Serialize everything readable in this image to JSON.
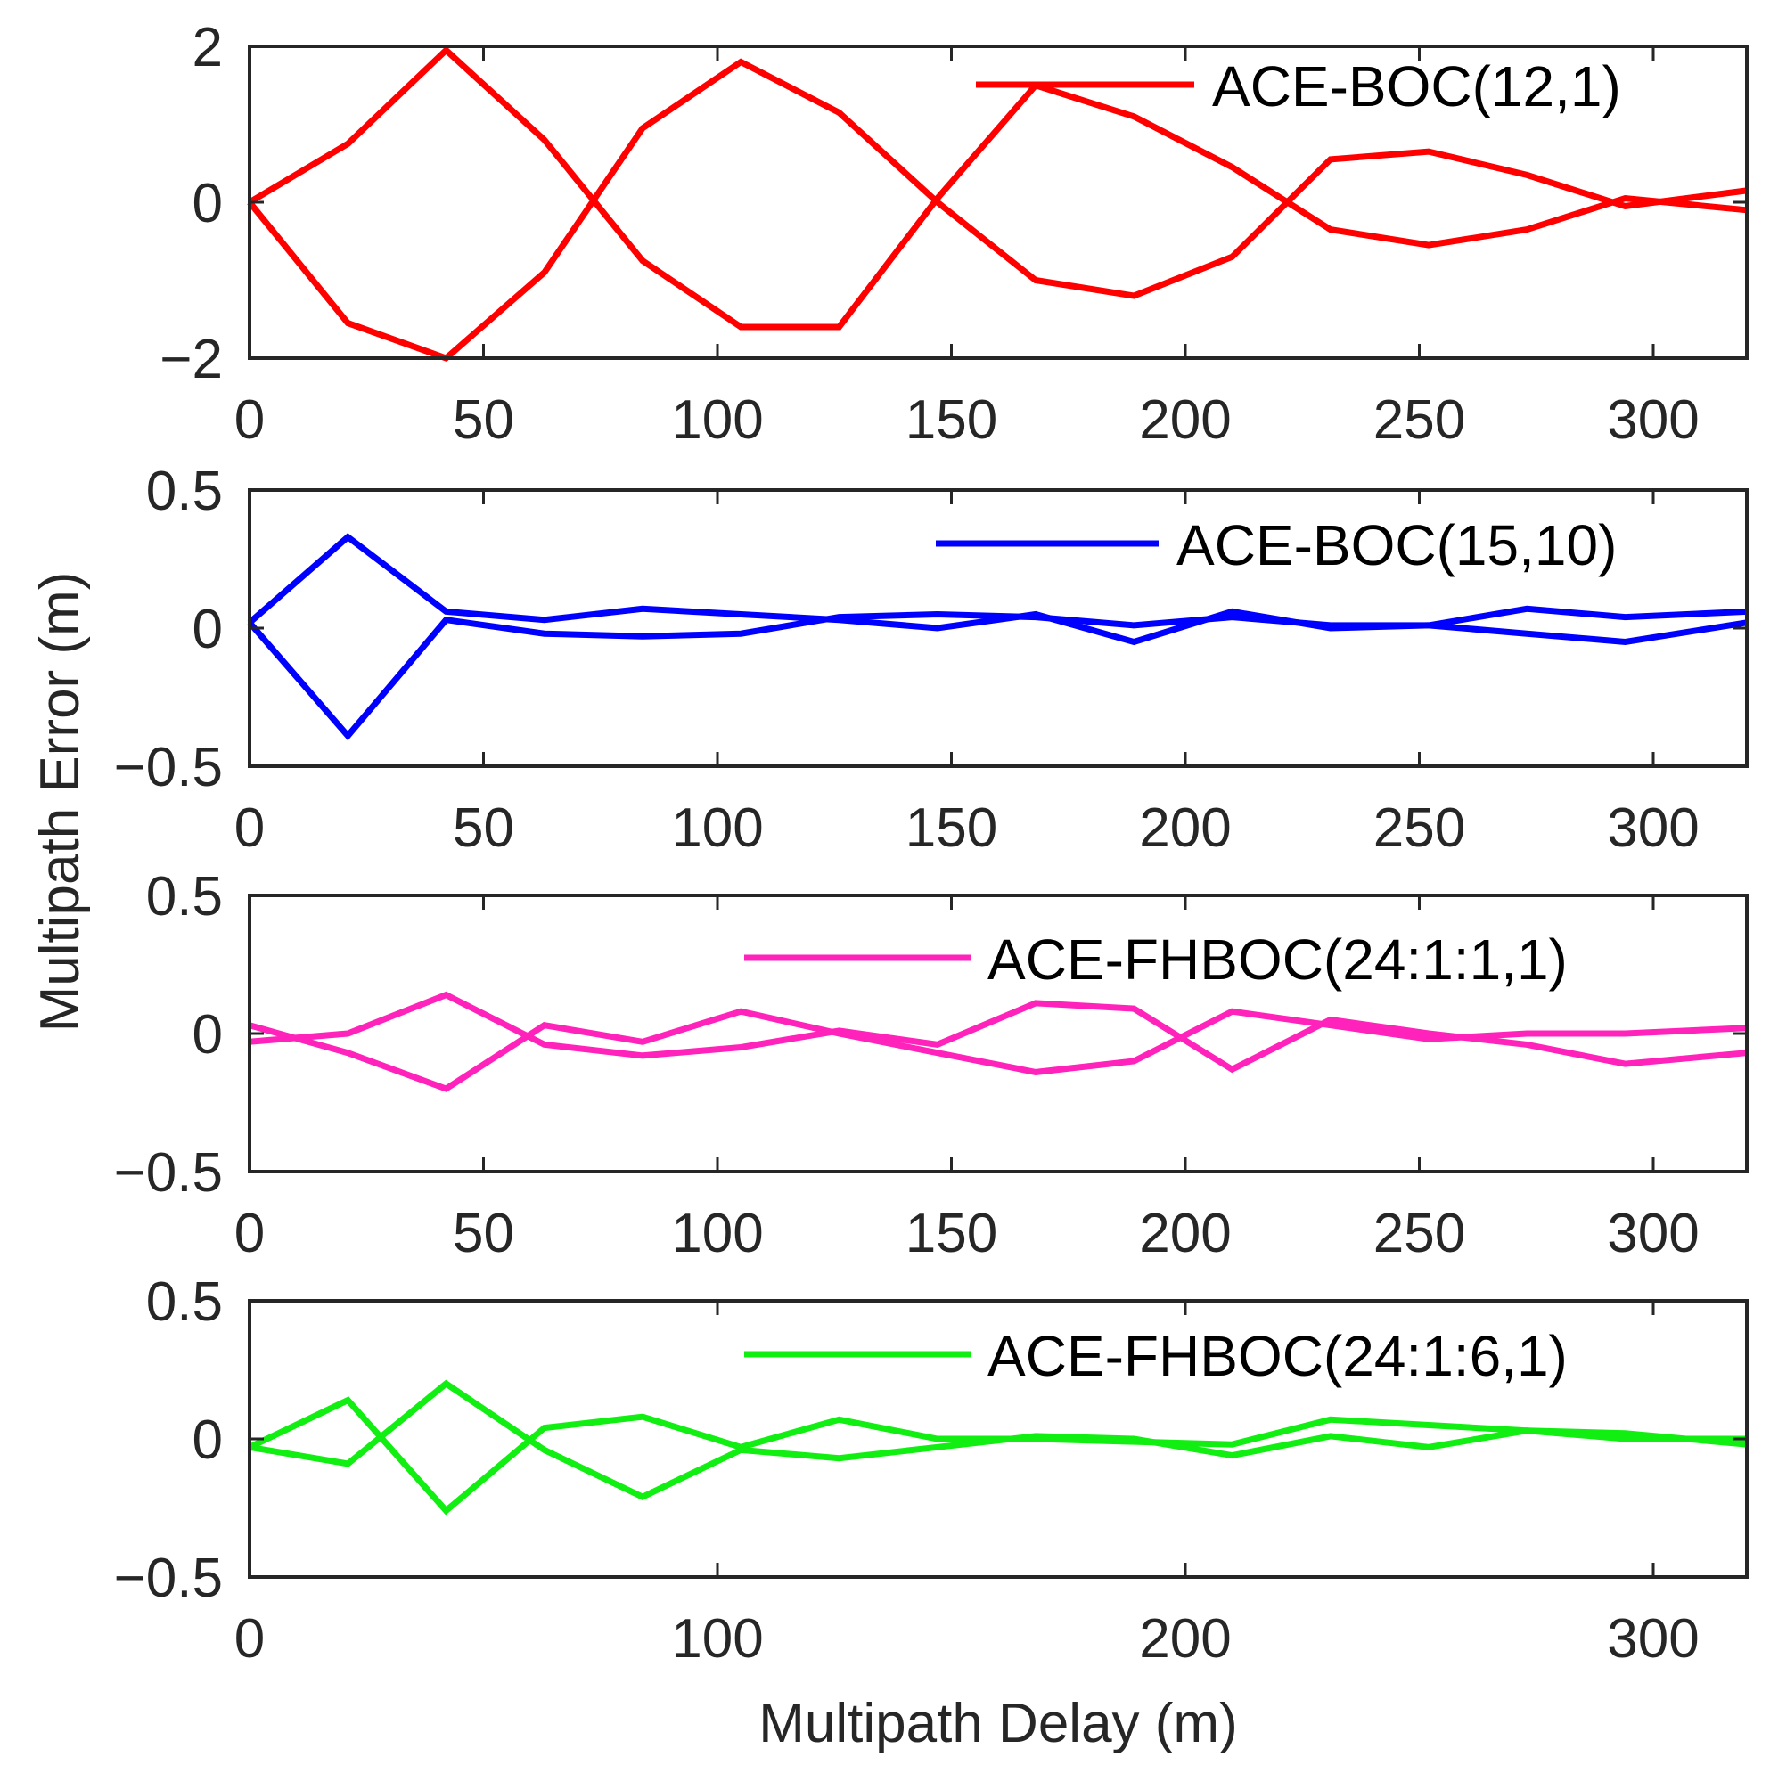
{
  "figure": {
    "ylabel": "Multipath Error (m)",
    "xlabel": "Multipath Delay (m)"
  },
  "chart_data": [
    {
      "type": "line",
      "legend": "ACE-BOC(12,1)",
      "color": "#ff0000",
      "xlim": [
        0,
        320
      ],
      "ylim": [
        -2,
        2
      ],
      "xticks": [
        0,
        50,
        100,
        150,
        200,
        250,
        300
      ],
      "xtick_labels": [
        "0",
        "50",
        "100",
        "150",
        "200",
        "250",
        "300"
      ],
      "yticks": [
        -2,
        0,
        2
      ],
      "ytick_labels": [
        "−2",
        "0",
        "2"
      ],
      "series": [
        {
          "name": "upper",
          "x": [
            0,
            21,
            42,
            63,
            84,
            105,
            126,
            147,
            168,
            189,
            210,
            231,
            252,
            273,
            294,
            320
          ],
          "y": [
            0,
            0.75,
            1.95,
            0.8,
            -0.75,
            -1.6,
            -1.6,
            0.05,
            1.5,
            1.1,
            0.45,
            -0.35,
            -0.55,
            -0.35,
            0.05,
            -0.1
          ]
        },
        {
          "name": "lower",
          "x": [
            0,
            21,
            42,
            63,
            84,
            105,
            126,
            147,
            168,
            189,
            210,
            231,
            252,
            273,
            294,
            320
          ],
          "y": [
            0,
            -1.55,
            -2.0,
            -0.9,
            0.95,
            1.8,
            1.15,
            0.0,
            -1.0,
            -1.2,
            -0.7,
            0.55,
            0.65,
            0.35,
            -0.05,
            0.15
          ]
        }
      ]
    },
    {
      "type": "line",
      "legend": "ACE-BOC(15,10)",
      "color": "#0000ff",
      "xlim": [
        0,
        320
      ],
      "ylim": [
        -0.5,
        0.5
      ],
      "xticks": [
        0,
        50,
        100,
        150,
        200,
        250,
        300
      ],
      "xtick_labels": [
        "0",
        "50",
        "100",
        "150",
        "200",
        "250",
        "300"
      ],
      "yticks": [
        -0.5,
        0,
        0.5
      ],
      "ytick_labels": [
        "−0.5",
        "0",
        "0.5"
      ],
      "series": [
        {
          "name": "upper",
          "x": [
            0,
            21,
            42,
            63,
            84,
            105,
            126,
            147,
            168,
            189,
            210,
            231,
            252,
            273,
            294,
            320
          ],
          "y": [
            0.02,
            0.33,
            0.06,
            0.03,
            0.07,
            0.05,
            0.03,
            0.0,
            0.05,
            -0.05,
            0.06,
            0.0,
            0.01,
            0.07,
            0.04,
            0.06
          ]
        },
        {
          "name": "lower",
          "x": [
            0,
            21,
            42,
            63,
            84,
            105,
            126,
            147,
            168,
            189,
            210,
            231,
            252,
            273,
            294,
            320
          ],
          "y": [
            0.02,
            -0.39,
            0.03,
            -0.02,
            -0.03,
            -0.02,
            0.04,
            0.05,
            0.04,
            0.01,
            0.04,
            0.01,
            0.01,
            -0.02,
            -0.05,
            0.02
          ]
        }
      ]
    },
    {
      "type": "line",
      "legend": "ACE-FHBOC(24:1:1,1)",
      "color": "#ff22bb",
      "xlim": [
        0,
        320
      ],
      "ylim": [
        -0.5,
        0.5
      ],
      "xticks": [
        0,
        50,
        100,
        150,
        200,
        250,
        300
      ],
      "xtick_labels": [
        "0",
        "50",
        "100",
        "150",
        "200",
        "250",
        "300"
      ],
      "yticks": [
        -0.5,
        0,
        0.5
      ],
      "ytick_labels": [
        "−0.5",
        "0",
        "0.5"
      ],
      "series": [
        {
          "name": "upper",
          "x": [
            0,
            21,
            42,
            63,
            84,
            105,
            126,
            147,
            168,
            189,
            210,
            231,
            252,
            273,
            294,
            320
          ],
          "y": [
            -0.03,
            0.0,
            0.14,
            -0.04,
            -0.08,
            -0.05,
            0.01,
            -0.04,
            0.11,
            0.09,
            -0.13,
            0.05,
            0.0,
            -0.04,
            -0.11,
            -0.07
          ]
        },
        {
          "name": "lower",
          "x": [
            0,
            21,
            42,
            63,
            84,
            105,
            126,
            147,
            168,
            189,
            210,
            231,
            252,
            273,
            294,
            320
          ],
          "y": [
            0.03,
            -0.07,
            -0.2,
            0.03,
            -0.03,
            0.08,
            0.0,
            -0.07,
            -0.14,
            -0.1,
            0.08,
            0.03,
            -0.02,
            0.0,
            0.0,
            0.02
          ]
        }
      ]
    },
    {
      "type": "line",
      "legend": "ACE-FHBOC(24:1:6,1)",
      "color": "#11ee11",
      "xlim": [
        0,
        320
      ],
      "ylim": [
        -0.5,
        0.5
      ],
      "xticks": [
        0,
        100,
        200,
        300
      ],
      "xtick_labels": [
        "0",
        "100",
        "200",
        "300"
      ],
      "yticks": [
        -0.5,
        0,
        0.5
      ],
      "ytick_labels": [
        "−0.5",
        "0",
        "0.5"
      ],
      "series": [
        {
          "name": "upper",
          "x": [
            0,
            21,
            42,
            63,
            84,
            105,
            126,
            147,
            168,
            189,
            210,
            231,
            252,
            273,
            294,
            320
          ],
          "y": [
            -0.03,
            0.14,
            -0.26,
            0.04,
            0.08,
            -0.03,
            0.07,
            0.0,
            0.0,
            -0.01,
            -0.02,
            0.07,
            0.05,
            0.03,
            0.02,
            -0.02
          ]
        },
        {
          "name": "lower",
          "x": [
            0,
            21,
            42,
            63,
            84,
            105,
            126,
            147,
            168,
            189,
            210,
            231,
            252,
            273,
            294,
            320
          ],
          "y": [
            -0.03,
            -0.09,
            0.2,
            -0.04,
            -0.21,
            -0.04,
            -0.07,
            -0.03,
            0.01,
            0.0,
            -0.06,
            0.01,
            -0.03,
            0.03,
            0.0,
            0.0
          ]
        }
      ]
    }
  ]
}
